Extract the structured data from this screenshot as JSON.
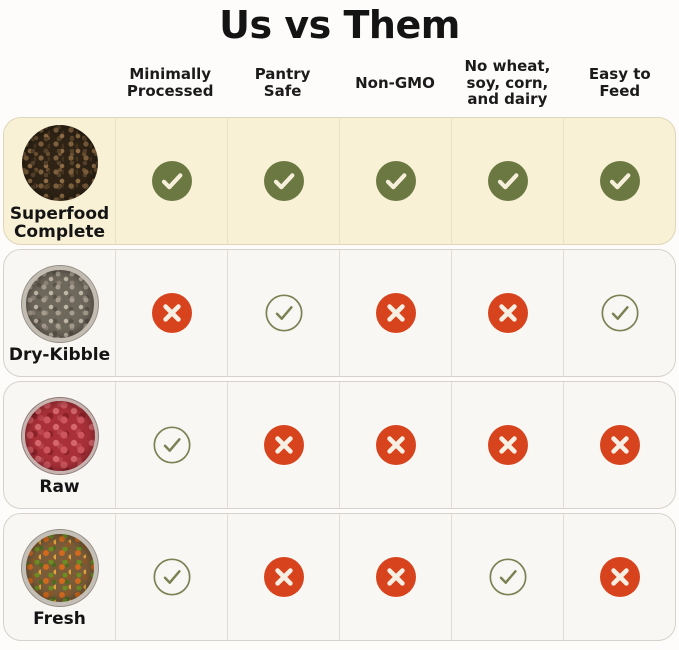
{
  "title": "Us vs Them",
  "columns": [
    {
      "label": "Minimally Processed",
      "lines": [
        "Minimally",
        "Processed"
      ]
    },
    {
      "label": "Pantry Safe",
      "lines": [
        "Pantry",
        "Safe"
      ]
    },
    {
      "label": "Non-GMO",
      "lines": [
        "Non-GMO"
      ]
    },
    {
      "label": "No wheat, soy, corn, and dairy",
      "lines": [
        "No wheat,",
        "soy, corn,",
        "and dairy"
      ]
    },
    {
      "label": "Easy to Feed",
      "lines": [
        "Easy to",
        "Feed"
      ]
    }
  ],
  "rows": [
    {
      "label": "Superfood Complete",
      "lines": [
        "Superfood",
        "Complete"
      ],
      "image": "superfood-complete",
      "highlight": true,
      "cells": [
        "check-filled",
        "check-filled",
        "check-filled",
        "check-filled",
        "check-filled"
      ]
    },
    {
      "label": "Dry-Kibble",
      "lines": [
        "Dry-Kibble"
      ],
      "image": "dry-kibble",
      "highlight": false,
      "cells": [
        "cross",
        "check-outline",
        "cross",
        "cross",
        "check-outline"
      ]
    },
    {
      "label": "Raw",
      "lines": [
        "Raw"
      ],
      "image": "raw",
      "highlight": false,
      "cells": [
        "check-outline",
        "cross",
        "cross",
        "cross",
        "cross"
      ]
    },
    {
      "label": "Fresh",
      "lines": [
        "Fresh"
      ],
      "image": "fresh",
      "highlight": false,
      "cells": [
        "check-outline",
        "cross",
        "cross",
        "check-outline",
        "cross"
      ]
    }
  ],
  "colors": {
    "page_bg": "#fdfcfa",
    "highlight_row_bg": "#f8f1d5",
    "normal_row_bg": "#f9f7f4",
    "check_filled": "#6c7841",
    "check_mark_light": "#f6efdb",
    "check_outline": "#7b8153",
    "cross": "#d7431c",
    "cross_mark_light": "#f6efe3",
    "text": "#191919"
  },
  "chart_data": {
    "type": "table",
    "title": "Us vs Them",
    "columns": [
      "Minimally Processed",
      "Pantry Safe",
      "Non-GMO",
      "No wheat, soy, corn, and dairy",
      "Easy to Feed"
    ],
    "rows": [
      {
        "name": "Superfood Complete",
        "highlighted": true,
        "values": [
          "yes",
          "yes",
          "yes",
          "yes",
          "yes"
        ],
        "icon_styles": [
          "filled-check",
          "filled-check",
          "filled-check",
          "filled-check",
          "filled-check"
        ]
      },
      {
        "name": "Dry-Kibble",
        "highlighted": false,
        "values": [
          "no",
          "yes",
          "no",
          "no",
          "yes"
        ],
        "icon_styles": [
          "cross",
          "outline-check",
          "cross",
          "cross",
          "outline-check"
        ]
      },
      {
        "name": "Raw",
        "highlighted": false,
        "values": [
          "yes",
          "no",
          "no",
          "no",
          "no"
        ],
        "icon_styles": [
          "outline-check",
          "cross",
          "cross",
          "cross",
          "cross"
        ]
      },
      {
        "name": "Fresh",
        "highlighted": false,
        "values": [
          "yes",
          "no",
          "no",
          "yes",
          "no"
        ],
        "icon_styles": [
          "outline-check",
          "cross",
          "cross",
          "outline-check",
          "cross"
        ]
      }
    ]
  }
}
